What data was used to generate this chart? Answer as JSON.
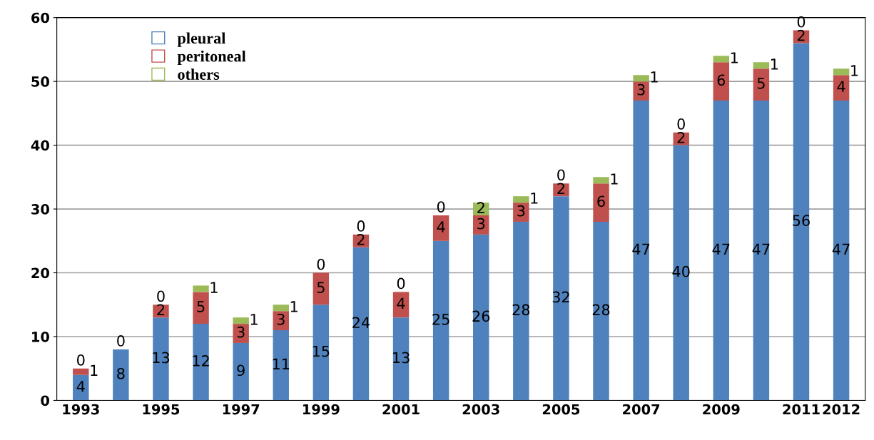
{
  "chart_data": {
    "type": "bar",
    "stacked": true,
    "categories": [
      "1993",
      null,
      "1995",
      null,
      "1997",
      null,
      "1999",
      null,
      "2001",
      null,
      "2003",
      null,
      "2005",
      null,
      "2007",
      null,
      "2009",
      null,
      "2011",
      "2012"
    ],
    "series": [
      {
        "name": "pleural",
        "color": "#4f81bd",
        "values": [
          4,
          8,
          13,
          12,
          9,
          11,
          15,
          24,
          13,
          25,
          26,
          28,
          32,
          28,
          47,
          40,
          47,
          47,
          56,
          47
        ],
        "value_labels": [
          "4",
          "8",
          "13",
          "12",
          "9",
          "11",
          "15",
          "24",
          "13",
          "25",
          "26",
          "28",
          "32",
          "28",
          "47",
          "40",
          "47",
          "47",
          "56",
          "47"
        ]
      },
      {
        "name": "peritoneal",
        "color": "#c0504d",
        "values": [
          1,
          0,
          2,
          5,
          3,
          3,
          5,
          2,
          4,
          4,
          3,
          3,
          2,
          6,
          3,
          2,
          6,
          5,
          2,
          4
        ],
        "value_labels": [
          "1",
          "0",
          "2",
          "5",
          "3",
          "3",
          "5",
          "2",
          "4",
          "4",
          "3",
          "3",
          "2",
          "6",
          "3",
          "2",
          "6",
          "5",
          "2",
          "4"
        ]
      },
      {
        "name": "others",
        "color": "#9bbb59",
        "values": [
          0,
          0,
          0,
          1,
          1,
          1,
          0,
          0,
          0,
          0,
          2,
          1,
          0,
          1,
          1,
          0,
          1,
          1,
          0,
          1
        ],
        "value_labels": [
          "0",
          null,
          "0",
          "1",
          "1",
          "1",
          "0",
          "0",
          "0",
          "0",
          "2",
          "1",
          "0",
          "1",
          "1",
          "0",
          "1",
          "1",
          "0",
          "1"
        ]
      }
    ],
    "ylim": [
      0,
      60
    ],
    "yticks": [
      0,
      10,
      20,
      30,
      40,
      50,
      60
    ],
    "grid": "y",
    "legend": "top left"
  }
}
